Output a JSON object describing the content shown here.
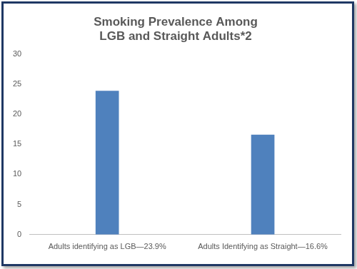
{
  "chart_data": {
    "type": "bar",
    "title": [
      "Smoking Prevalence Among",
      "LGB and Straight Adults*2"
    ],
    "categories": [
      "Adults identifying as LGB—23.9%",
      "Adults Identifying as Straight—16.6%"
    ],
    "values": [
      23.9,
      16.6
    ],
    "color": "#4f81bd",
    "ylim": [
      0,
      30
    ],
    "yticks": [
      0,
      5,
      10,
      15,
      20,
      25,
      30
    ],
    "grid": false
  }
}
